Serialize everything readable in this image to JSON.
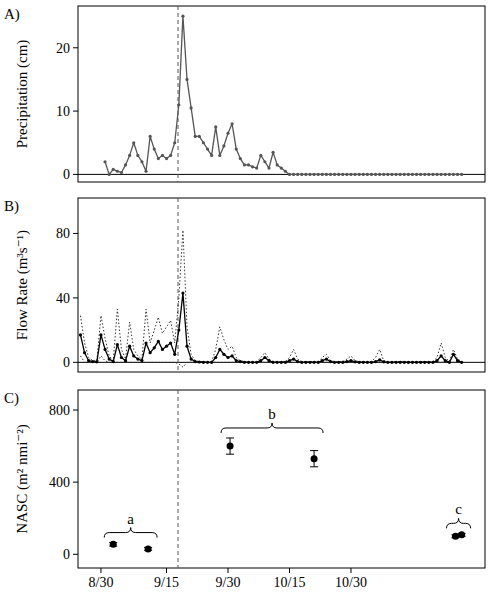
{
  "chart_data": [
    {
      "type": "line",
      "title": "A)",
      "y_label": "Precipitation (cm)",
      "x": [
        1,
        2,
        3,
        4,
        5,
        6,
        7,
        8,
        9,
        10,
        11,
        12,
        13,
        14,
        15,
        16,
        17,
        18,
        19,
        20,
        21,
        22,
        23,
        24,
        25,
        26,
        27,
        28,
        29,
        30,
        31,
        32,
        33,
        34,
        35,
        36,
        37,
        38,
        39,
        40,
        41,
        42,
        43,
        44,
        45,
        46,
        47,
        48,
        49,
        50,
        51,
        52,
        53,
        54,
        55,
        56,
        57,
        58,
        59,
        60,
        61,
        62,
        63,
        64,
        65,
        66,
        67,
        68,
        69,
        70,
        71,
        72,
        73,
        74,
        75,
        76,
        77,
        78,
        79,
        80,
        81,
        82,
        83,
        84,
        85,
        86,
        87,
        88
      ],
      "series": [
        {
          "color": "#555555",
          "marker": "circle",
          "line_style": "solid",
          "values": [
            2,
            0,
            0.8,
            0.5,
            0.3,
            1.5,
            3,
            5,
            3,
            2,
            0.5,
            6,
            4,
            2.5,
            3,
            2.5,
            3,
            5,
            11,
            25,
            15,
            10.5,
            6,
            6,
            5,
            4,
            3,
            7.5,
            3,
            4.5,
            6.5,
            8,
            4,
            2.5,
            1.5,
            1.5,
            1.2,
            1,
            3,
            2,
            1,
            3.5,
            1.5,
            1,
            0.5,
            0,
            0,
            0,
            0,
            0,
            0,
            0,
            0,
            0,
            0,
            0,
            0,
            0,
            0,
            0,
            0,
            0,
            0,
            0,
            0,
            0,
            0,
            0,
            0,
            0,
            0,
            0,
            0,
            0,
            0,
            0,
            0,
            0,
            0,
            0,
            0,
            0,
            0,
            0,
            0,
            0,
            0,
            0
          ]
        }
      ],
      "xlim": [
        -5.6,
        93.7
      ],
      "ylim": [
        -1.2,
        26.6
      ],
      "yticks": [
        0,
        10,
        20
      ],
      "hlines": [
        0
      ],
      "vlines": [
        18.8
      ],
      "tick_labels": "y"
    },
    {
      "type": "line",
      "title": "B)",
      "y_label": "Flow Rate (m³s⁻¹)",
      "x": [
        -5,
        -4,
        -3,
        -2,
        -1,
        0,
        1,
        2,
        3,
        4,
        5,
        6,
        7,
        8,
        9,
        10,
        11,
        12,
        13,
        14,
        15,
        16,
        17,
        18,
        19,
        20,
        21,
        22,
        23,
        24,
        25,
        26,
        27,
        28,
        29,
        30,
        31,
        32,
        33,
        34,
        35,
        36,
        37,
        38,
        39,
        40,
        41,
        42,
        43,
        44,
        45,
        46,
        47,
        48,
        49,
        50,
        51,
        52,
        53,
        54,
        55,
        56,
        57,
        58,
        59,
        60,
        61,
        62,
        63,
        64,
        65,
        66,
        67,
        68,
        69,
        70,
        71,
        72,
        73,
        74,
        75,
        76,
        77,
        78,
        79,
        80,
        81,
        82,
        83,
        84,
        85,
        86,
        87,
        88
      ],
      "series": [
        {
          "color": "#333333",
          "marker": "none",
          "line_style": "dotted",
          "values": [
            29,
            12,
            3,
            1,
            1,
            29,
            15,
            4,
            1,
            33,
            8,
            2,
            25,
            8,
            4,
            2,
            33,
            12,
            20,
            28,
            18,
            22,
            26,
            12,
            40,
            82,
            22,
            5,
            1,
            0.5,
            0.5,
            0.5,
            0.5,
            8,
            22,
            14,
            8,
            10,
            3,
            1,
            0.5,
            0.5,
            0.5,
            0.5,
            3,
            6,
            2,
            0.5,
            0.5,
            0.5,
            0.5,
            3,
            8,
            2,
            0.5,
            0.5,
            0.5,
            0.5,
            0.5,
            3,
            5,
            1,
            0.5,
            0.5,
            0.5,
            2,
            4,
            1,
            0.5,
            0.5,
            0.5,
            0.5,
            3,
            8,
            1,
            0.5,
            0.5,
            0.5,
            0.5,
            0.5,
            0.5,
            0.5,
            0.5,
            0.5,
            0.5,
            0.5,
            0.5,
            3,
            12,
            3,
            0.5,
            8,
            2,
            0.5
          ]
        },
        {
          "color": "#333333",
          "marker": "none",
          "line_style": "dotted",
          "values": [
            4,
            0,
            0,
            0,
            0,
            4,
            1,
            0,
            0,
            0,
            0,
            0,
            0,
            0,
            0,
            0,
            0,
            0,
            0,
            0,
            0,
            0,
            0,
            0,
            -1,
            -3,
            0,
            0,
            0,
            0,
            0,
            0,
            0,
            0,
            0,
            0,
            0,
            0,
            0,
            0,
            0,
            0,
            0,
            0,
            0,
            0,
            0,
            0,
            0,
            0,
            0,
            0,
            0,
            0,
            0,
            0,
            0,
            0,
            0,
            0,
            0,
            0,
            0,
            0,
            0,
            0,
            0,
            0,
            0,
            0,
            0,
            0,
            0,
            0,
            0,
            0,
            0,
            0,
            0,
            0,
            0,
            0,
            0,
            0,
            0,
            0,
            0,
            0,
            0,
            0,
            0,
            0,
            0,
            0
          ]
        },
        {
          "color": "#000000",
          "marker": "circle",
          "line_style": "solid",
          "values": [
            17,
            6,
            1,
            0.5,
            0.3,
            17,
            8,
            2,
            0.5,
            11,
            3,
            1,
            10,
            4,
            2,
            1,
            12,
            6,
            9,
            13,
            8,
            10,
            12,
            5,
            20,
            43,
            10,
            2,
            0.5,
            0.2,
            0,
            0,
            0,
            3,
            8,
            5,
            3,
            4,
            1,
            0.5,
            0,
            0,
            0,
            0,
            1,
            3,
            1,
            0,
            0,
            0,
            0,
            1,
            2,
            0.5,
            0,
            0,
            0,
            0,
            0,
            1,
            2,
            0.5,
            0,
            0,
            0,
            0.5,
            1,
            0.3,
            0,
            0,
            0,
            0,
            0.5,
            1.5,
            0.3,
            0,
            0,
            0,
            0,
            0,
            0,
            0,
            0,
            0,
            0,
            0,
            0,
            1,
            4,
            1,
            0,
            5,
            1,
            0
          ]
        }
      ],
      "xlim": [
        -5.6,
        93.7
      ],
      "ylim": [
        -6,
        102
      ],
      "yticks": [
        0,
        40,
        80
      ],
      "hlines": [
        0
      ],
      "vlines": [
        18.8
      ],
      "tick_labels": "y"
    },
    {
      "type": "scatter",
      "title": "C)",
      "y_label": "NASC (m² nmi⁻²)",
      "x": [
        3,
        11.5,
        31.5,
        52,
        86.5,
        88
      ],
      "series": [
        {
          "color": "#000000",
          "marker": "circle",
          "values": [
            55,
            30,
            600,
            530,
            100,
            108
          ],
          "errors": [
            10,
            8,
            45,
            45,
            8,
            8
          ]
        }
      ],
      "annotations": [
        {
          "text": "a",
          "indices": [
            0,
            1
          ]
        },
        {
          "text": "b",
          "indices": [
            2,
            3
          ]
        },
        {
          "text": "c",
          "indices": [
            4,
            5
          ]
        }
      ],
      "xlim": [
        -5.6,
        93.7
      ],
      "ylim": [
        -76,
        911
      ],
      "yticks": [
        0,
        400,
        800
      ],
      "xticks": [
        {
          "value": 0,
          "label": "8/30"
        },
        {
          "value": 16,
          "label": "9/15"
        },
        {
          "value": 31,
          "label": "9/30"
        },
        {
          "value": 46,
          "label": "10/15"
        },
        {
          "value": 61,
          "label": "10/30"
        }
      ],
      "vlines": [
        18.8
      ]
    }
  ]
}
